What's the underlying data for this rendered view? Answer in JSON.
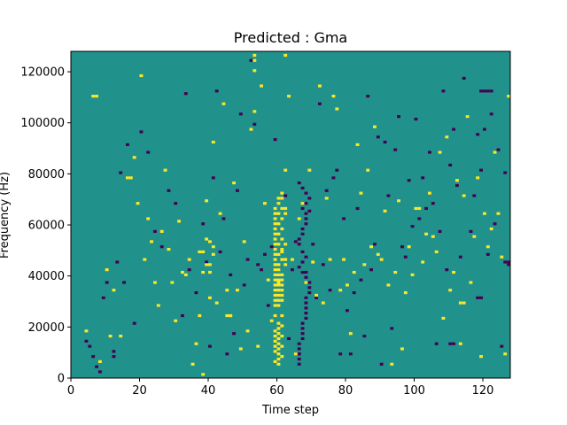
{
  "chart_data": {
    "type": "heatmap",
    "title": "Predicted : Gma",
    "xlabel": "Time step",
    "ylabel": "Frequency (Hz)",
    "xlim": [
      0,
      128
    ],
    "ylim": [
      0,
      128000
    ],
    "xticks": [
      0,
      20,
      40,
      60,
      80,
      100,
      120
    ],
    "yticks": [
      0,
      20000,
      40000,
      60000,
      80000,
      100000,
      120000
    ],
    "xtick_labels": [
      "0",
      "20",
      "40",
      "60",
      "80",
      "100",
      "120"
    ],
    "ytick_labels": [
      "0",
      "20000",
      "40000",
      "60000",
      "80000",
      "100000",
      "120000"
    ],
    "grid": false,
    "colors": {
      "background": "#21918c",
      "high": "#fde725",
      "low": "#440154"
    },
    "cells": {
      "high": [
        [
          4,
          18
        ],
        [
          6,
          110
        ],
        [
          7,
          110
        ],
        [
          8,
          6
        ],
        [
          10,
          42
        ],
        [
          11,
          16
        ],
        [
          12,
          34
        ],
        [
          14,
          16
        ],
        [
          16,
          78
        ],
        [
          17,
          78
        ],
        [
          18,
          86
        ],
        [
          19,
          68
        ],
        [
          20,
          118
        ],
        [
          21,
          46
        ],
        [
          22,
          62
        ],
        [
          23,
          53
        ],
        [
          24,
          37
        ],
        [
          25,
          28
        ],
        [
          26,
          57
        ],
        [
          27,
          81
        ],
        [
          28,
          50
        ],
        [
          29,
          37
        ],
        [
          30,
          22
        ],
        [
          31,
          61
        ],
        [
          32,
          41
        ],
        [
          33,
          40
        ],
        [
          34,
          46
        ],
        [
          35,
          5
        ],
        [
          36,
          13
        ],
        [
          37,
          24
        ],
        [
          38,
          1
        ],
        [
          39,
          69
        ],
        [
          40,
          31
        ],
        [
          41,
          92
        ],
        [
          42,
          29
        ],
        [
          43,
          64
        ],
        [
          44,
          107
        ],
        [
          45,
          34
        ],
        [
          46,
          24
        ],
        [
          47,
          76
        ],
        [
          48,
          34
        ],
        [
          49,
          11
        ],
        [
          50,
          53
        ],
        [
          51,
          18
        ],
        [
          52,
          97
        ],
        [
          53,
          104
        ],
        [
          54,
          12
        ],
        [
          55,
          114
        ],
        [
          56,
          68
        ],
        [
          57,
          38
        ],
        [
          58,
          22
        ],
        [
          59,
          6
        ],
        [
          60,
          37
        ],
        [
          61,
          49
        ],
        [
          62,
          81
        ],
        [
          63,
          110
        ],
        [
          64,
          46
        ],
        [
          65,
          9
        ],
        [
          66,
          62
        ],
        [
          67,
          68
        ],
        [
          68,
          37
        ],
        [
          69,
          81
        ],
        [
          70,
          45
        ],
        [
          71,
          32
        ],
        [
          72,
          114
        ],
        [
          73,
          29
        ],
        [
          74,
          70
        ],
        [
          75,
          46
        ],
        [
          76,
          110
        ],
        [
          77,
          105
        ],
        [
          78,
          34
        ],
        [
          79,
          46
        ],
        [
          80,
          36
        ],
        [
          81,
          17
        ],
        [
          82,
          41
        ],
        [
          83,
          91
        ],
        [
          84,
          72
        ],
        [
          85,
          44
        ],
        [
          86,
          81
        ],
        [
          87,
          51
        ],
        [
          88,
          98
        ],
        [
          89,
          48
        ],
        [
          90,
          46
        ],
        [
          91,
          65
        ],
        [
          92,
          36
        ],
        [
          93,
          5
        ],
        [
          94,
          41
        ],
        [
          95,
          69
        ],
        [
          96,
          11
        ],
        [
          97,
          33
        ],
        [
          98,
          51
        ],
        [
          99,
          40
        ],
        [
          100,
          66
        ],
        [
          101,
          66
        ],
        [
          102,
          45
        ],
        [
          103,
          56
        ],
        [
          104,
          72
        ],
        [
          105,
          55
        ],
        [
          106,
          49
        ],
        [
          107,
          88
        ],
        [
          108,
          23
        ],
        [
          109,
          94
        ],
        [
          110,
          34
        ],
        [
          111,
          41
        ],
        [
          112,
          77
        ],
        [
          113,
          13
        ],
        [
          114,
          71
        ],
        [
          115,
          102
        ],
        [
          116,
          37
        ],
        [
          117,
          55
        ],
        [
          118,
          78
        ],
        [
          119,
          8
        ],
        [
          120,
          64
        ],
        [
          121,
          51
        ],
        [
          122,
          58
        ],
        [
          123,
          88
        ],
        [
          124,
          64
        ],
        [
          125,
          47
        ],
        [
          126,
          9
        ],
        [
          127,
          110
        ],
        [
          59,
          10
        ],
        [
          59,
          12
        ],
        [
          59,
          14
        ],
        [
          59,
          16
        ],
        [
          59,
          18
        ],
        [
          60,
          5
        ],
        [
          60,
          7
        ],
        [
          60,
          9
        ],
        [
          60,
          11
        ],
        [
          60,
          13
        ],
        [
          60,
          15
        ],
        [
          60,
          17
        ],
        [
          60,
          19
        ],
        [
          60,
          21
        ],
        [
          61,
          8
        ],
        [
          61,
          12
        ],
        [
          61,
          16
        ],
        [
          61,
          20
        ],
        [
          61,
          24
        ],
        [
          59,
          24
        ],
        [
          59,
          28
        ],
        [
          59,
          30
        ],
        [
          59,
          32
        ],
        [
          59,
          34
        ],
        [
          59,
          36
        ],
        [
          59,
          38
        ],
        [
          59,
          40
        ],
        [
          59,
          42
        ],
        [
          60,
          28
        ],
        [
          60,
          30
        ],
        [
          60,
          32
        ],
        [
          60,
          34
        ],
        [
          60,
          36
        ],
        [
          60,
          38
        ],
        [
          60,
          40
        ],
        [
          60,
          42
        ],
        [
          61,
          30
        ],
        [
          61,
          32
        ],
        [
          61,
          34
        ],
        [
          61,
          36
        ],
        [
          61,
          38
        ],
        [
          61,
          40
        ],
        [
          59,
          44
        ],
        [
          59,
          46
        ],
        [
          59,
          48
        ],
        [
          59,
          50
        ],
        [
          59,
          52
        ],
        [
          59,
          54
        ],
        [
          59,
          56
        ],
        [
          59,
          58
        ],
        [
          59,
          60
        ],
        [
          59,
          62
        ],
        [
          59,
          64
        ],
        [
          59,
          66
        ],
        [
          60,
          44
        ],
        [
          60,
          48
        ],
        [
          60,
          52
        ],
        [
          60,
          56
        ],
        [
          60,
          60
        ],
        [
          60,
          64
        ],
        [
          60,
          68
        ],
        [
          60,
          70
        ],
        [
          61,
          46
        ],
        [
          61,
          50
        ],
        [
          61,
          54
        ],
        [
          61,
          58
        ],
        [
          61,
          62
        ],
        [
          61,
          66
        ],
        [
          61,
          70
        ],
        [
          61,
          72
        ],
        [
          62,
          44
        ],
        [
          62,
          46
        ],
        [
          62,
          52
        ],
        [
          62,
          64
        ],
        [
          62,
          66
        ],
        [
          38,
          41
        ],
        [
          39,
          44
        ],
        [
          40,
          44
        ],
        [
          40,
          41
        ],
        [
          37,
          49
        ],
        [
          38,
          49
        ],
        [
          39,
          54
        ],
        [
          40,
          53
        ],
        [
          41,
          51
        ],
        [
          41,
          48
        ],
        [
          45,
          24
        ],
        [
          46,
          24
        ],
        [
          53,
          120
        ],
        [
          53,
          124
        ],
        [
          53,
          126
        ],
        [
          62,
          126
        ],
        [
          113,
          29
        ],
        [
          114,
          29
        ]
      ],
      "low": [
        [
          4,
          14
        ],
        [
          5,
          12
        ],
        [
          6,
          8
        ],
        [
          7,
          4
        ],
        [
          8,
          2
        ],
        [
          9,
          31
        ],
        [
          10,
          37
        ],
        [
          12,
          10
        ],
        [
          12,
          8
        ],
        [
          13,
          45
        ],
        [
          14,
          80
        ],
        [
          15,
          37
        ],
        [
          16,
          91
        ],
        [
          18,
          21
        ],
        [
          20,
          96
        ],
        [
          22,
          88
        ],
        [
          24,
          57
        ],
        [
          26,
          51
        ],
        [
          28,
          73
        ],
        [
          30,
          68
        ],
        [
          32,
          24
        ],
        [
          33,
          111
        ],
        [
          34,
          42
        ],
        [
          36,
          33
        ],
        [
          38,
          60
        ],
        [
          39,
          45
        ],
        [
          40,
          12
        ],
        [
          41,
          78
        ],
        [
          42,
          112
        ],
        [
          43,
          49
        ],
        [
          44,
          62
        ],
        [
          45,
          9
        ],
        [
          46,
          40
        ],
        [
          47,
          17
        ],
        [
          48,
          73
        ],
        [
          49,
          103
        ],
        [
          50,
          36
        ],
        [
          51,
          46
        ],
        [
          52,
          124
        ],
        [
          53,
          99
        ],
        [
          54,
          44
        ],
        [
          55,
          42
        ],
        [
          56,
          48
        ],
        [
          57,
          28
        ],
        [
          58,
          51
        ],
        [
          59,
          93
        ],
        [
          62,
          71
        ],
        [
          63,
          15
        ],
        [
          64,
          42
        ],
        [
          65,
          53
        ],
        [
          66,
          9
        ],
        [
          67,
          49
        ],
        [
          68,
          41
        ],
        [
          69,
          65
        ],
        [
          70,
          52
        ],
        [
          71,
          31
        ],
        [
          72,
          107
        ],
        [
          73,
          44
        ],
        [
          74,
          73
        ],
        [
          75,
          34
        ],
        [
          76,
          78
        ],
        [
          77,
          81
        ],
        [
          78,
          9
        ],
        [
          79,
          62
        ],
        [
          80,
          26
        ],
        [
          81,
          9
        ],
        [
          82,
          33
        ],
        [
          83,
          66
        ],
        [
          84,
          38
        ],
        [
          85,
          16
        ],
        [
          86,
          110
        ],
        [
          87,
          42
        ],
        [
          88,
          52
        ],
        [
          89,
          94
        ],
        [
          90,
          5
        ],
        [
          91,
          92
        ],
        [
          92,
          71
        ],
        [
          93,
          19
        ],
        [
          94,
          89
        ],
        [
          95,
          102
        ],
        [
          96,
          51
        ],
        [
          97,
          47
        ],
        [
          98,
          77
        ],
        [
          99,
          59
        ],
        [
          100,
          101
        ],
        [
          101,
          62
        ],
        [
          102,
          78
        ],
        [
          103,
          66
        ],
        [
          104,
          88
        ],
        [
          105,
          68
        ],
        [
          106,
          13
        ],
        [
          107,
          57
        ],
        [
          108,
          112
        ],
        [
          109,
          42
        ],
        [
          110,
          83
        ],
        [
          111,
          97
        ],
        [
          112,
          75
        ],
        [
          113,
          47
        ],
        [
          114,
          117
        ],
        [
          115,
          102
        ],
        [
          116,
          57
        ],
        [
          117,
          71
        ],
        [
          118,
          95
        ],
        [
          119,
          81
        ],
        [
          120,
          97
        ],
        [
          121,
          48
        ],
        [
          122,
          103
        ],
        [
          123,
          60
        ],
        [
          124,
          89
        ],
        [
          125,
          12
        ],
        [
          126,
          80
        ],
        [
          127,
          44
        ],
        [
          66,
          5
        ],
        [
          66,
          7
        ],
        [
          66,
          9
        ],
        [
          66,
          11
        ],
        [
          66,
          13
        ],
        [
          67,
          15
        ],
        [
          67,
          17
        ],
        [
          67,
          19
        ],
        [
          67,
          21
        ],
        [
          68,
          23
        ],
        [
          68,
          25
        ],
        [
          68,
          27
        ],
        [
          68,
          29
        ],
        [
          68,
          31
        ],
        [
          69,
          33
        ],
        [
          69,
          35
        ],
        [
          69,
          37
        ],
        [
          68,
          39
        ],
        [
          67,
          41
        ],
        [
          66,
          43
        ],
        [
          67,
          45
        ],
        [
          68,
          47
        ],
        [
          66,
          52
        ],
        [
          66,
          54
        ],
        [
          67,
          56
        ],
        [
          67,
          58
        ],
        [
          68,
          60
        ],
        [
          68,
          62
        ],
        [
          68,
          64
        ],
        [
          67,
          66
        ],
        [
          68,
          68
        ],
        [
          69,
          70
        ],
        [
          68,
          72
        ],
        [
          67,
          74
        ],
        [
          66,
          76
        ],
        [
          119,
          112
        ],
        [
          120,
          112
        ],
        [
          121,
          112
        ],
        [
          122,
          112
        ],
        [
          126,
          45
        ],
        [
          127,
          45
        ],
        [
          118,
          31
        ],
        [
          119,
          31
        ],
        [
          110,
          13
        ],
        [
          111,
          13
        ]
      ]
    }
  }
}
